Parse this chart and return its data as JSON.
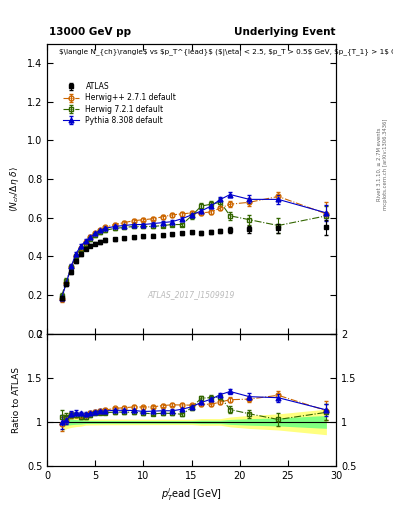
{
  "title_left": "13000 GeV pp",
  "title_right": "Underlying Event",
  "ylabel_main": "$\\langle N_{ch}/\\Delta\\eta\\ \\delta\\rangle$",
  "ylabel_ratio": "Ratio to ATLAS",
  "xlabel": "$p_T^l$ead [GeV]",
  "watermark": "ATLAS_2017_I1509919",
  "rivet_label": "Rivet 3.1.10, ≥ 2.7M events",
  "mcplots_label": "mcplots.cern.ch [arXiv:1306.3436]",
  "ylim_main": [
    0.0,
    1.5
  ],
  "ylim_ratio": [
    0.5,
    2.0
  ],
  "xlim": [
    1,
    30
  ],
  "atlas_x": [
    1.5,
    2.0,
    2.5,
    3.0,
    3.5,
    4.0,
    4.5,
    5.0,
    5.5,
    6.0,
    7.0,
    8.0,
    9.0,
    10.0,
    11.0,
    12.0,
    13.0,
    14.0,
    15.0,
    16.0,
    17.0,
    18.0,
    19.0,
    21.0,
    24.0,
    29.0
  ],
  "atlas_y": [
    0.185,
    0.26,
    0.32,
    0.375,
    0.415,
    0.44,
    0.455,
    0.465,
    0.475,
    0.485,
    0.49,
    0.495,
    0.5,
    0.505,
    0.508,
    0.51,
    0.515,
    0.52,
    0.525,
    0.52,
    0.525,
    0.53,
    0.535,
    0.54,
    0.545,
    0.55
  ],
  "atlas_yerr": [
    0.01,
    0.01,
    0.01,
    0.01,
    0.01,
    0.008,
    0.008,
    0.008,
    0.008,
    0.008,
    0.008,
    0.008,
    0.008,
    0.008,
    0.008,
    0.008,
    0.008,
    0.008,
    0.008,
    0.01,
    0.01,
    0.01,
    0.015,
    0.02,
    0.025,
    0.04
  ],
  "herwig_x": [
    1.5,
    2.0,
    2.5,
    3.0,
    3.5,
    4.0,
    4.5,
    5.0,
    5.5,
    6.0,
    7.0,
    8.0,
    9.0,
    10.0,
    11.0,
    12.0,
    13.0,
    14.0,
    15.0,
    16.0,
    17.0,
    18.0,
    19.0,
    21.0,
    24.0,
    29.0
  ],
  "herwig_y": [
    0.18,
    0.265,
    0.345,
    0.405,
    0.445,
    0.475,
    0.5,
    0.52,
    0.535,
    0.55,
    0.565,
    0.575,
    0.585,
    0.59,
    0.595,
    0.605,
    0.615,
    0.62,
    0.625,
    0.625,
    0.63,
    0.65,
    0.67,
    0.68,
    0.71,
    0.62
  ],
  "herwig_yerr": [
    0.015,
    0.012,
    0.01,
    0.01,
    0.009,
    0.009,
    0.009,
    0.009,
    0.009,
    0.009,
    0.009,
    0.009,
    0.009,
    0.009,
    0.009,
    0.009,
    0.009,
    0.009,
    0.009,
    0.009,
    0.01,
    0.01,
    0.015,
    0.02,
    0.025,
    0.06
  ],
  "herwig7_x": [
    1.5,
    2.0,
    2.5,
    3.0,
    3.5,
    4.0,
    4.5,
    5.0,
    5.5,
    6.0,
    7.0,
    8.0,
    9.0,
    10.0,
    11.0,
    12.0,
    13.0,
    14.0,
    15.0,
    16.0,
    17.0,
    18.0,
    19.0,
    21.0,
    24.0,
    29.0
  ],
  "herwig7_y": [
    0.195,
    0.275,
    0.345,
    0.405,
    0.44,
    0.465,
    0.49,
    0.51,
    0.525,
    0.535,
    0.545,
    0.55,
    0.555,
    0.555,
    0.555,
    0.56,
    0.565,
    0.565,
    0.61,
    0.66,
    0.67,
    0.68,
    0.61,
    0.59,
    0.56,
    0.61
  ],
  "herwig7_yerr": [
    0.015,
    0.012,
    0.01,
    0.01,
    0.009,
    0.009,
    0.009,
    0.009,
    0.009,
    0.009,
    0.009,
    0.009,
    0.009,
    0.009,
    0.009,
    0.009,
    0.009,
    0.009,
    0.015,
    0.015,
    0.015,
    0.02,
    0.02,
    0.025,
    0.04,
    0.05
  ],
  "pythia_x": [
    1.5,
    2.0,
    2.5,
    3.0,
    3.5,
    4.0,
    4.5,
    5.0,
    5.5,
    6.0,
    7.0,
    8.0,
    9.0,
    10.0,
    11.0,
    12.0,
    13.0,
    14.0,
    15.0,
    16.0,
    17.0,
    18.0,
    19.0,
    21.0,
    24.0,
    29.0
  ],
  "pythia_y": [
    0.185,
    0.265,
    0.35,
    0.415,
    0.455,
    0.48,
    0.5,
    0.52,
    0.535,
    0.545,
    0.555,
    0.56,
    0.565,
    0.565,
    0.57,
    0.575,
    0.58,
    0.595,
    0.615,
    0.635,
    0.66,
    0.695,
    0.72,
    0.695,
    0.695,
    0.625
  ],
  "pythia_yerr": [
    0.015,
    0.012,
    0.01,
    0.01,
    0.009,
    0.009,
    0.009,
    0.009,
    0.009,
    0.009,
    0.009,
    0.009,
    0.009,
    0.009,
    0.009,
    0.009,
    0.009,
    0.009,
    0.009,
    0.009,
    0.01,
    0.01,
    0.015,
    0.02,
    0.025,
    0.04
  ],
  "atlas_color": "#000000",
  "herwig_color": "#cc6600",
  "herwig7_color": "#336600",
  "pythia_color": "#0000cc",
  "band_color_yellow": "#ffff80",
  "band_color_green": "#80ff80"
}
